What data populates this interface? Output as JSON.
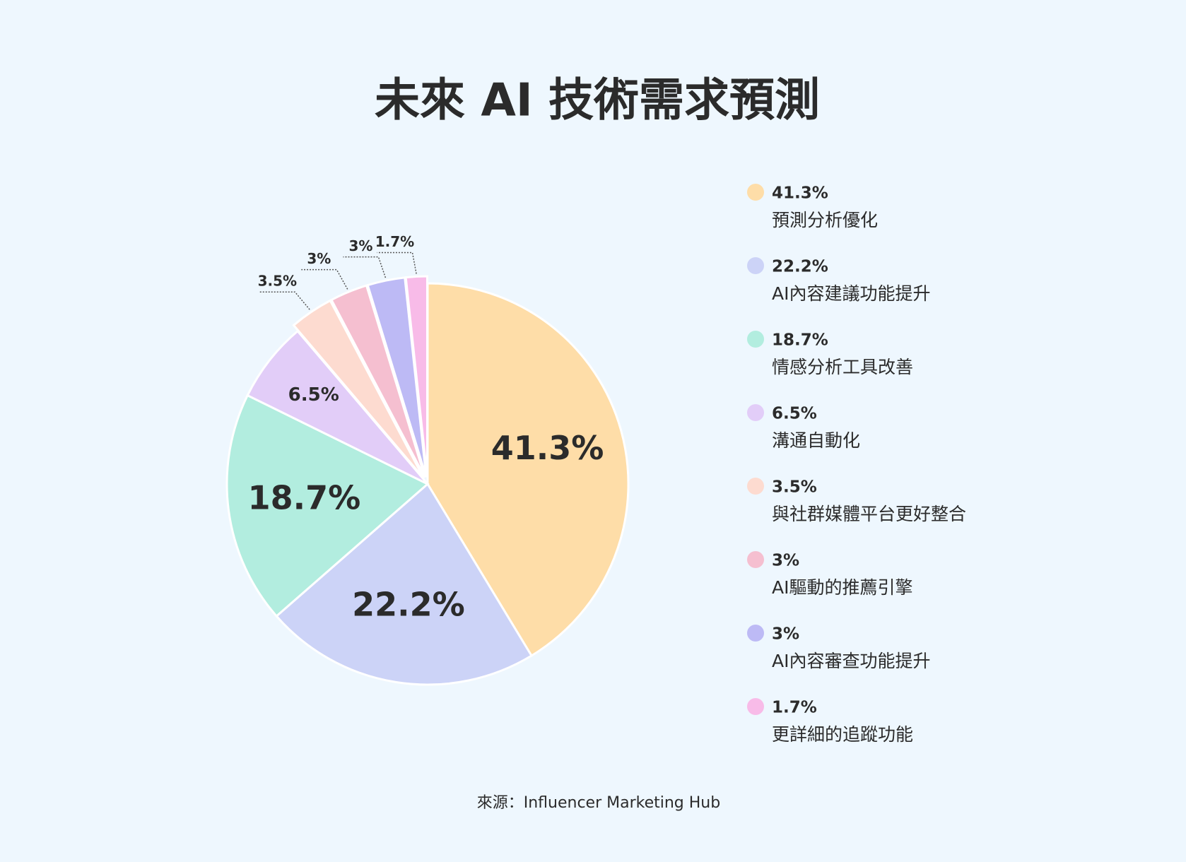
{
  "chart_data": {
    "type": "pie",
    "title": "未來 AI 技術需求預測",
    "categories": [
      "預測分析優化",
      "AI內容建議功能提升",
      "情感分析工具改善",
      "溝通自動化",
      "與社群媒體平台更好整合",
      "AI驅動的推薦引擎",
      "AI內容審查功能提升",
      "更詳細的追蹤功能"
    ],
    "values": [
      41.3,
      22.2,
      18.7,
      6.5,
      3.5,
      3,
      3,
      1.7
    ],
    "value_labels": [
      "41.3%",
      "22.2%",
      "18.7%",
      "6.5%",
      "3.5%",
      "3%",
      "3%",
      "1.7%"
    ],
    "colors": [
      "#fedda8",
      "#ccd3f7",
      "#b2eddf",
      "#e2cdf8",
      "#fddbd0",
      "#f5bfd0",
      "#bdbaf5",
      "#f8bbe8"
    ],
    "legend": "right",
    "source": "來源：Influencer Marketing Hub"
  }
}
